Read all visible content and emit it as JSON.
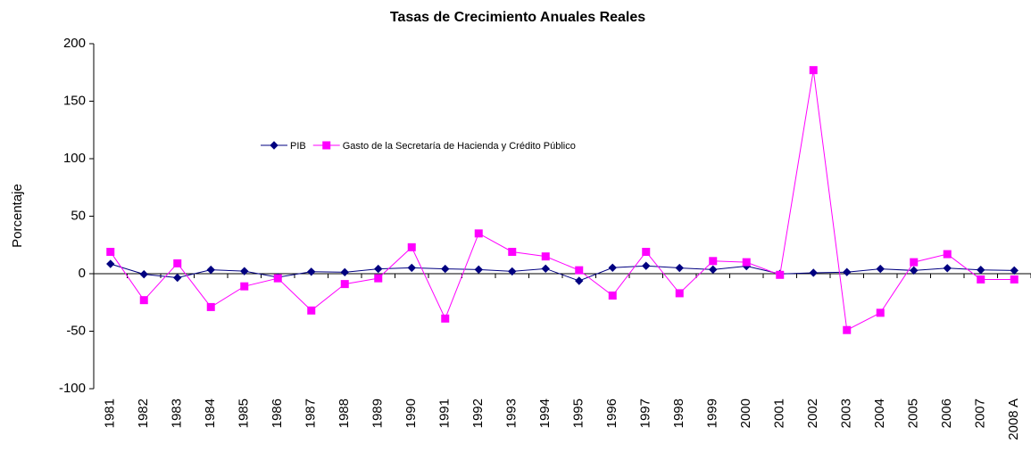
{
  "chart_data": {
    "type": "line",
    "title": "Tasas de Crecimiento Anuales Reales",
    "y_label": "Porcentaje",
    "categories": [
      "1981",
      "1982",
      "1983",
      "1984",
      "1985",
      "1986",
      "1987",
      "1988",
      "1989",
      "1990",
      "1991",
      "1992",
      "1993",
      "1994",
      "1995",
      "1996",
      "1997",
      "1998",
      "1999",
      "2000",
      "2001",
      "2002",
      "2003",
      "2004",
      "2005",
      "2006",
      "2007",
      "2008 A"
    ],
    "series": [
      {
        "name": "PIB",
        "color": "#000080",
        "marker": "diamond",
        "values": [
          8.5,
          -0.5,
          -3.5,
          3.4,
          2.2,
          -3.1,
          1.7,
          1.3,
          4.2,
          5.1,
          4.2,
          3.6,
          2.0,
          4.4,
          -6.2,
          5.2,
          6.8,
          5.0,
          3.6,
          6.6,
          -0.2,
          0.8,
          1.4,
          4.2,
          2.8,
          4.8,
          3.3,
          2.8
        ]
      },
      {
        "name": "Gasto de la Secretaría de Hacienda y Crédito Público",
        "color": "#ff00ff",
        "marker": "square",
        "values": [
          19,
          -23,
          9,
          -29,
          -11,
          -4,
          -32,
          -9,
          -4,
          23,
          -39,
          35,
          19,
          15,
          3,
          -19,
          19,
          -17,
          11,
          10,
          -1,
          177,
          -49,
          -34,
          10,
          17,
          -5,
          -5
        ]
      }
    ],
    "ylim": [
      -100,
      200
    ],
    "yticks": [
      -100,
      -50,
      0,
      50,
      100,
      150,
      200
    ]
  }
}
